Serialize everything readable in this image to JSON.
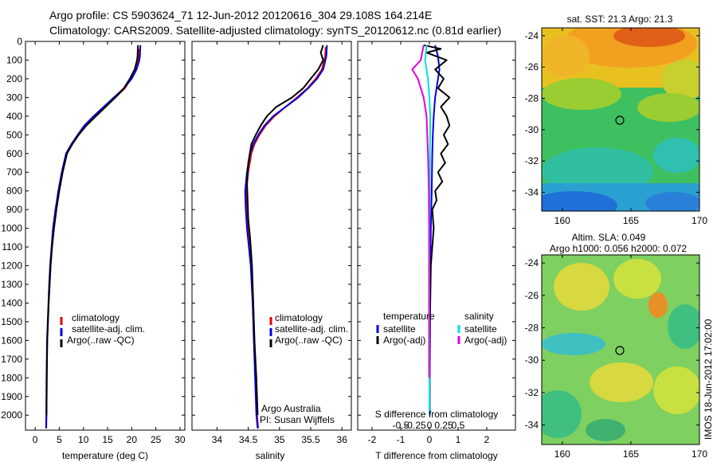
{
  "header": {
    "line1": "Argo profile: CS 5903624_71  12-Jun-2012  20120616_304  29.108S 164.214E",
    "line2": "Climatology: CARS2009. Satellite-adjusted climatology: synTS_20120612.nc (0.81d earlier)"
  },
  "side_label": "IMOS 18-Jun-2012 17:02:00",
  "chart_data": [
    {
      "type": "line",
      "id": "temperature",
      "xlabel": "temperature (deg C)",
      "xlim": [
        -2,
        31
      ],
      "xticks": [
        0,
        5,
        10,
        15,
        20,
        25,
        30
      ],
      "ylim": [
        2080,
        0
      ],
      "yticks": [
        0,
        100,
        200,
        300,
        400,
        500,
        600,
        700,
        800,
        900,
        1000,
        1100,
        1200,
        1300,
        1400,
        1500,
        1600,
        1700,
        1800,
        1900,
        2000
      ],
      "legend": [
        "climatology",
        "satellite-adj. clim.",
        "Argo(..raw -QC)"
      ],
      "series": [
        {
          "name": "climatology",
          "color": "#e00000",
          "x": [
            21.6,
            21.5,
            21.4,
            20.8,
            19.8,
            18.6,
            16.6,
            14.5,
            12.4,
            10.4,
            8.9,
            7.6,
            6.5,
            5.6,
            4.9,
            4.3,
            3.8,
            3.5,
            3.2,
            3.0,
            2.8,
            2.65,
            2.5,
            2.4,
            2.35,
            2.3
          ],
          "y": [
            40,
            80,
            100,
            150,
            200,
            250,
            300,
            350,
            400,
            450,
            500,
            550,
            600,
            700,
            800,
            900,
            1000,
            1100,
            1200,
            1300,
            1400,
            1500,
            1600,
            1800,
            2000,
            2070
          ]
        },
        {
          "name": "satellite-adj. clim.",
          "color": "#0000e0",
          "x": [
            21.8,
            21.7,
            21.6,
            21.0,
            20.0,
            18.4,
            16.3,
            14.2,
            12.1,
            10.2,
            8.8,
            7.5,
            6.4,
            5.5,
            4.8,
            4.2,
            3.7,
            3.4,
            3.1,
            2.9,
            2.75,
            2.6,
            2.45,
            2.35,
            2.3,
            2.25
          ],
          "y": [
            20,
            80,
            100,
            150,
            200,
            250,
            300,
            350,
            400,
            450,
            500,
            550,
            600,
            700,
            800,
            900,
            1000,
            1100,
            1200,
            1300,
            1400,
            1500,
            1600,
            1800,
            2000,
            2070
          ]
        },
        {
          "name": "Argo(..raw -QC)",
          "color": "#000000",
          "x": [
            21.3,
            21.2,
            21.1,
            20.6,
            19.6,
            18.4,
            16.6,
            14.6,
            12.6,
            10.6,
            9.0,
            7.7,
            6.6,
            5.7,
            5.0,
            4.4,
            3.9,
            3.5,
            3.2,
            3.0,
            2.8,
            2.65,
            2.5,
            2.4,
            2.35
          ],
          "y": [
            20,
            80,
            100,
            150,
            200,
            250,
            300,
            350,
            400,
            450,
            500,
            550,
            600,
            700,
            800,
            900,
            1000,
            1100,
            1200,
            1300,
            1400,
            1500,
            1600,
            1800,
            2000
          ]
        }
      ]
    },
    {
      "type": "line",
      "id": "salinity",
      "xlabel": "salinity",
      "xlim": [
        33.6,
        36.15
      ],
      "xticks": [
        34,
        34.5,
        35,
        35.5,
        36
      ],
      "ylim": [
        2080,
        0
      ],
      "legend": [
        "climatology",
        "satellite-adj. clim.",
        "Argo(..raw -QC)"
      ],
      "annotation": [
        "Argo Australia",
        "PI: Susan Wijffels"
      ],
      "series": [
        {
          "name": "climatology",
          "color": "#e00000",
          "x": [
            35.74,
            35.73,
            35.68,
            35.58,
            35.45,
            35.28,
            35.1,
            34.92,
            34.78,
            34.68,
            34.6,
            34.55,
            34.5,
            34.47,
            34.47,
            34.49,
            34.52,
            34.55,
            34.58,
            34.6,
            34.62,
            34.64,
            34.66
          ],
          "y": [
            30,
            80,
            150,
            200,
            250,
            300,
            350,
            400,
            450,
            500,
            550,
            600,
            700,
            800,
            900,
            1000,
            1100,
            1200,
            1400,
            1600,
            1800,
            2000,
            2070
          ]
        },
        {
          "name": "satellite-adj. clim.",
          "color": "#0000e0",
          "x": [
            35.76,
            35.75,
            35.7,
            35.6,
            35.46,
            35.3,
            35.1,
            34.9,
            34.76,
            34.66,
            34.58,
            34.53,
            34.48,
            34.45,
            34.46,
            34.48,
            34.51,
            34.54,
            34.57,
            34.59,
            34.61,
            34.63,
            34.65
          ],
          "y": [
            20,
            80,
            150,
            200,
            250,
            300,
            350,
            400,
            450,
            500,
            550,
            600,
            700,
            800,
            900,
            1000,
            1100,
            1200,
            1400,
            1600,
            1800,
            2000,
            2070
          ]
        },
        {
          "name": "Argo(..raw -QC)",
          "color": "#000000",
          "x": [
            35.7,
            35.66,
            35.7,
            35.62,
            35.5,
            35.38,
            35.2,
            34.95,
            34.8,
            34.7,
            34.62,
            34.55,
            34.5,
            34.48,
            34.49,
            34.5,
            34.53,
            34.56,
            34.58,
            34.6,
            34.63,
            34.65
          ],
          "y": [
            20,
            60,
            100,
            150,
            200,
            250,
            300,
            350,
            400,
            450,
            500,
            550,
            650,
            750,
            850,
            950,
            1050,
            1200,
            1400,
            1600,
            1800,
            2000
          ]
        }
      ]
    },
    {
      "type": "line",
      "id": "difference",
      "xlabel": "T difference from climatology",
      "xlabel2": "S difference from climatology",
      "xlim": [
        -2.5,
        3
      ],
      "xticks": [
        -2,
        -1,
        0,
        1,
        2
      ],
      "xticks_top": [
        "-0.5",
        "-0.25",
        "0",
        "0.25",
        "0.5"
      ],
      "ylim": [
        2080,
        0
      ],
      "legend_headers": [
        "temperature",
        "salinity"
      ],
      "legend": [
        "satellite",
        "Argo(-adj)",
        "satellite",
        "Argo(-adj)"
      ],
      "series": [
        {
          "name": "T satellite",
          "color": "#0000e0",
          "x": [
            0.2,
            0.3,
            0.35,
            0.3,
            0.25,
            0.2,
            0.15,
            0.12,
            0.1,
            0.08,
            0.05,
            0.03,
            0.02,
            0.02,
            0.01,
            0.01
          ],
          "y": [
            20,
            80,
            150,
            200,
            250,
            300,
            400,
            500,
            600,
            800,
            1000,
            1200,
            1400,
            1600,
            1800,
            2000
          ]
        },
        {
          "name": "T Argo(-adj)",
          "color": "#000000",
          "x": [
            -0.2,
            0.4,
            -0.1,
            0.6,
            0.2,
            0.5,
            0.3,
            0.7,
            0.4,
            0.6,
            0.7,
            0.5,
            0.65,
            0.4,
            0.55,
            0.3,
            0.45,
            0.2,
            0.25,
            0.1,
            0.15,
            0.05,
            0.02,
            0.0
          ],
          "y": [
            20,
            40,
            60,
            100,
            150,
            200,
            250,
            300,
            350,
            400,
            450,
            500,
            550,
            600,
            650,
            700,
            750,
            800,
            850,
            900,
            1000,
            1200,
            1500,
            2000
          ]
        },
        {
          "name": "S satellite",
          "color": "#00e0e0",
          "x": [
            -0.1,
            -0.15,
            -0.05,
            0.0,
            0.03,
            0.02,
            0.01,
            0.0,
            0.0,
            0.0,
            0.0,
            0.0
          ],
          "y": [
            20,
            100,
            200,
            300,
            400,
            600,
            800,
            1000,
            1200,
            1500,
            1800,
            2000
          ]
        },
        {
          "name": "S Argo(-adj)",
          "color": "#e000e0",
          "x": [
            -0.2,
            -0.3,
            -0.6,
            -0.4,
            -0.2,
            -0.1,
            -0.05,
            -0.02,
            -0.01,
            -0.01
          ],
          "y": [
            20,
            100,
            150,
            200,
            300,
            400,
            600,
            800,
            1000,
            1800
          ]
        }
      ]
    },
    {
      "type": "heatmap",
      "id": "sst-map",
      "title": "sat. SST: 21.3  Argo: 21.3",
      "xticks": [
        160,
        165,
        170
      ],
      "yticks": [
        -24,
        -26,
        -28,
        -30,
        -32,
        -34
      ],
      "marker": {
        "lon": 164.214,
        "lat": -29.108
      }
    },
    {
      "type": "heatmap",
      "id": "sla-map",
      "title": "Altim. SLA: 0.049",
      "subtitle": "Argo h1000: 0.056 h2000: 0.072",
      "xticks": [
        160,
        165,
        170
      ],
      "yticks": [
        -24,
        -26,
        -28,
        -30,
        -32,
        -34
      ],
      "marker": {
        "lon": 164.214,
        "lat": -29.108
      }
    }
  ]
}
